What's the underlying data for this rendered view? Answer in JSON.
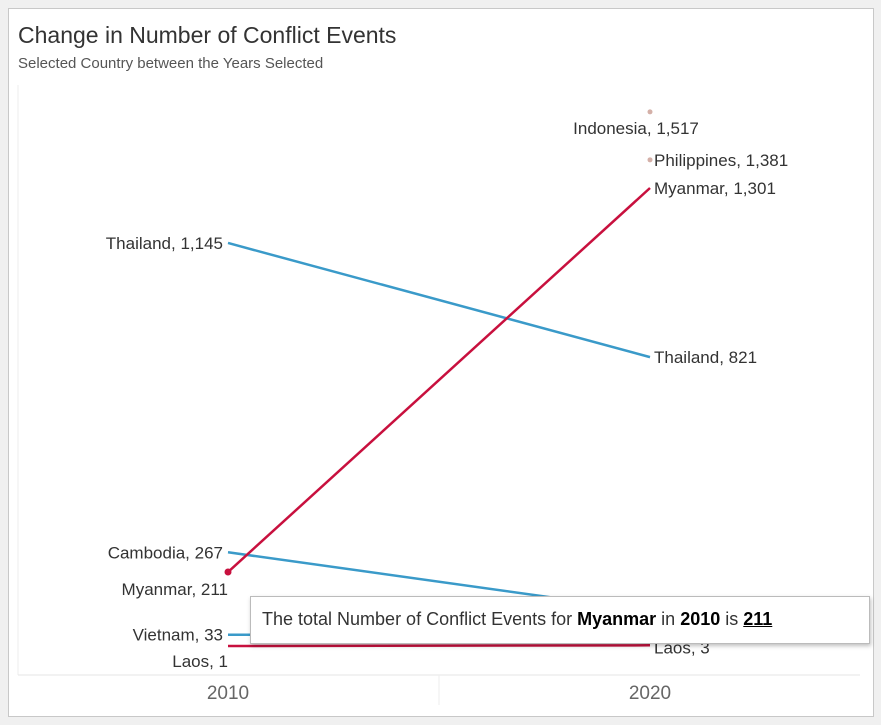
{
  "chart_data": {
    "type": "line",
    "title": "Change in Number of Conflict Events",
    "subtitle": "Selected Country between the Years Selected",
    "x": [
      "2010",
      "2020"
    ],
    "ylim": [
      0,
      1550
    ],
    "grid": false,
    "series": [
      {
        "name": "Thailand",
        "color": "#3a9ac9",
        "values": [
          1145,
          821
        ],
        "labels": [
          "Thailand, 1,145",
          "Thailand, 821"
        ]
      },
      {
        "name": "Cambodia",
        "color": "#3a9ac9",
        "values": [
          267,
          100
        ],
        "labels": [
          "Cambodia, 267",
          null
        ]
      },
      {
        "name": "Vietnam",
        "color": "#3a9ac9",
        "values": [
          33,
          30
        ],
        "labels": [
          "Vietnam, 33",
          null
        ]
      },
      {
        "name": "Myanmar",
        "color": "#c8103e",
        "values": [
          211,
          1301
        ],
        "labels": [
          "Myanmar, 211",
          "Myanmar, 1,301"
        ]
      },
      {
        "name": "Laos",
        "color": "#c8103e",
        "values": [
          1,
          3
        ],
        "labels": [
          "Laos, 1",
          "Laos, 3"
        ]
      },
      {
        "name": "Indonesia",
        "color": "#d4b0a8",
        "values": [
          null,
          1517
        ],
        "labels": [
          null,
          "Indonesia, 1,517"
        ]
      },
      {
        "name": "Philippines",
        "color": "#d4b0a8",
        "values": [
          null,
          1381
        ],
        "labels": [
          null,
          "Philippines, 1,381"
        ]
      }
    ]
  },
  "tooltip": {
    "prefix": "The total Number of Conflict Events for ",
    "country": "Myanmar",
    "mid1": " in ",
    "year": "2010",
    "mid2": " is ",
    "value": "211"
  }
}
